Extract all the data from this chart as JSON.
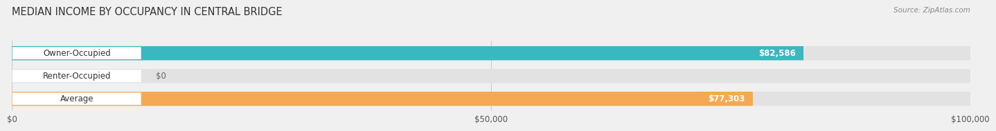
{
  "title": "MEDIAN INCOME BY OCCUPANCY IN CENTRAL BRIDGE",
  "source_text": "Source: ZipAtlas.com",
  "categories": [
    "Owner-Occupied",
    "Renter-Occupied",
    "Average"
  ],
  "values": [
    82586,
    0,
    77303
  ],
  "bar_colors": [
    "#3ab8c0",
    "#c4a0d4",
    "#f5a952"
  ],
  "bar_labels": [
    "$82,586",
    "$0",
    "$77,303"
  ],
  "xlim": [
    0,
    100000
  ],
  "xticks": [
    0,
    50000,
    100000
  ],
  "xtick_labels": [
    "$0",
    "$50,000",
    "$100,000"
  ],
  "background_color": "#f0f0f0",
  "bar_bg_color": "#e2e2e2",
  "title_fontsize": 10.5,
  "label_fontsize": 8.5,
  "value_fontsize": 8.5
}
